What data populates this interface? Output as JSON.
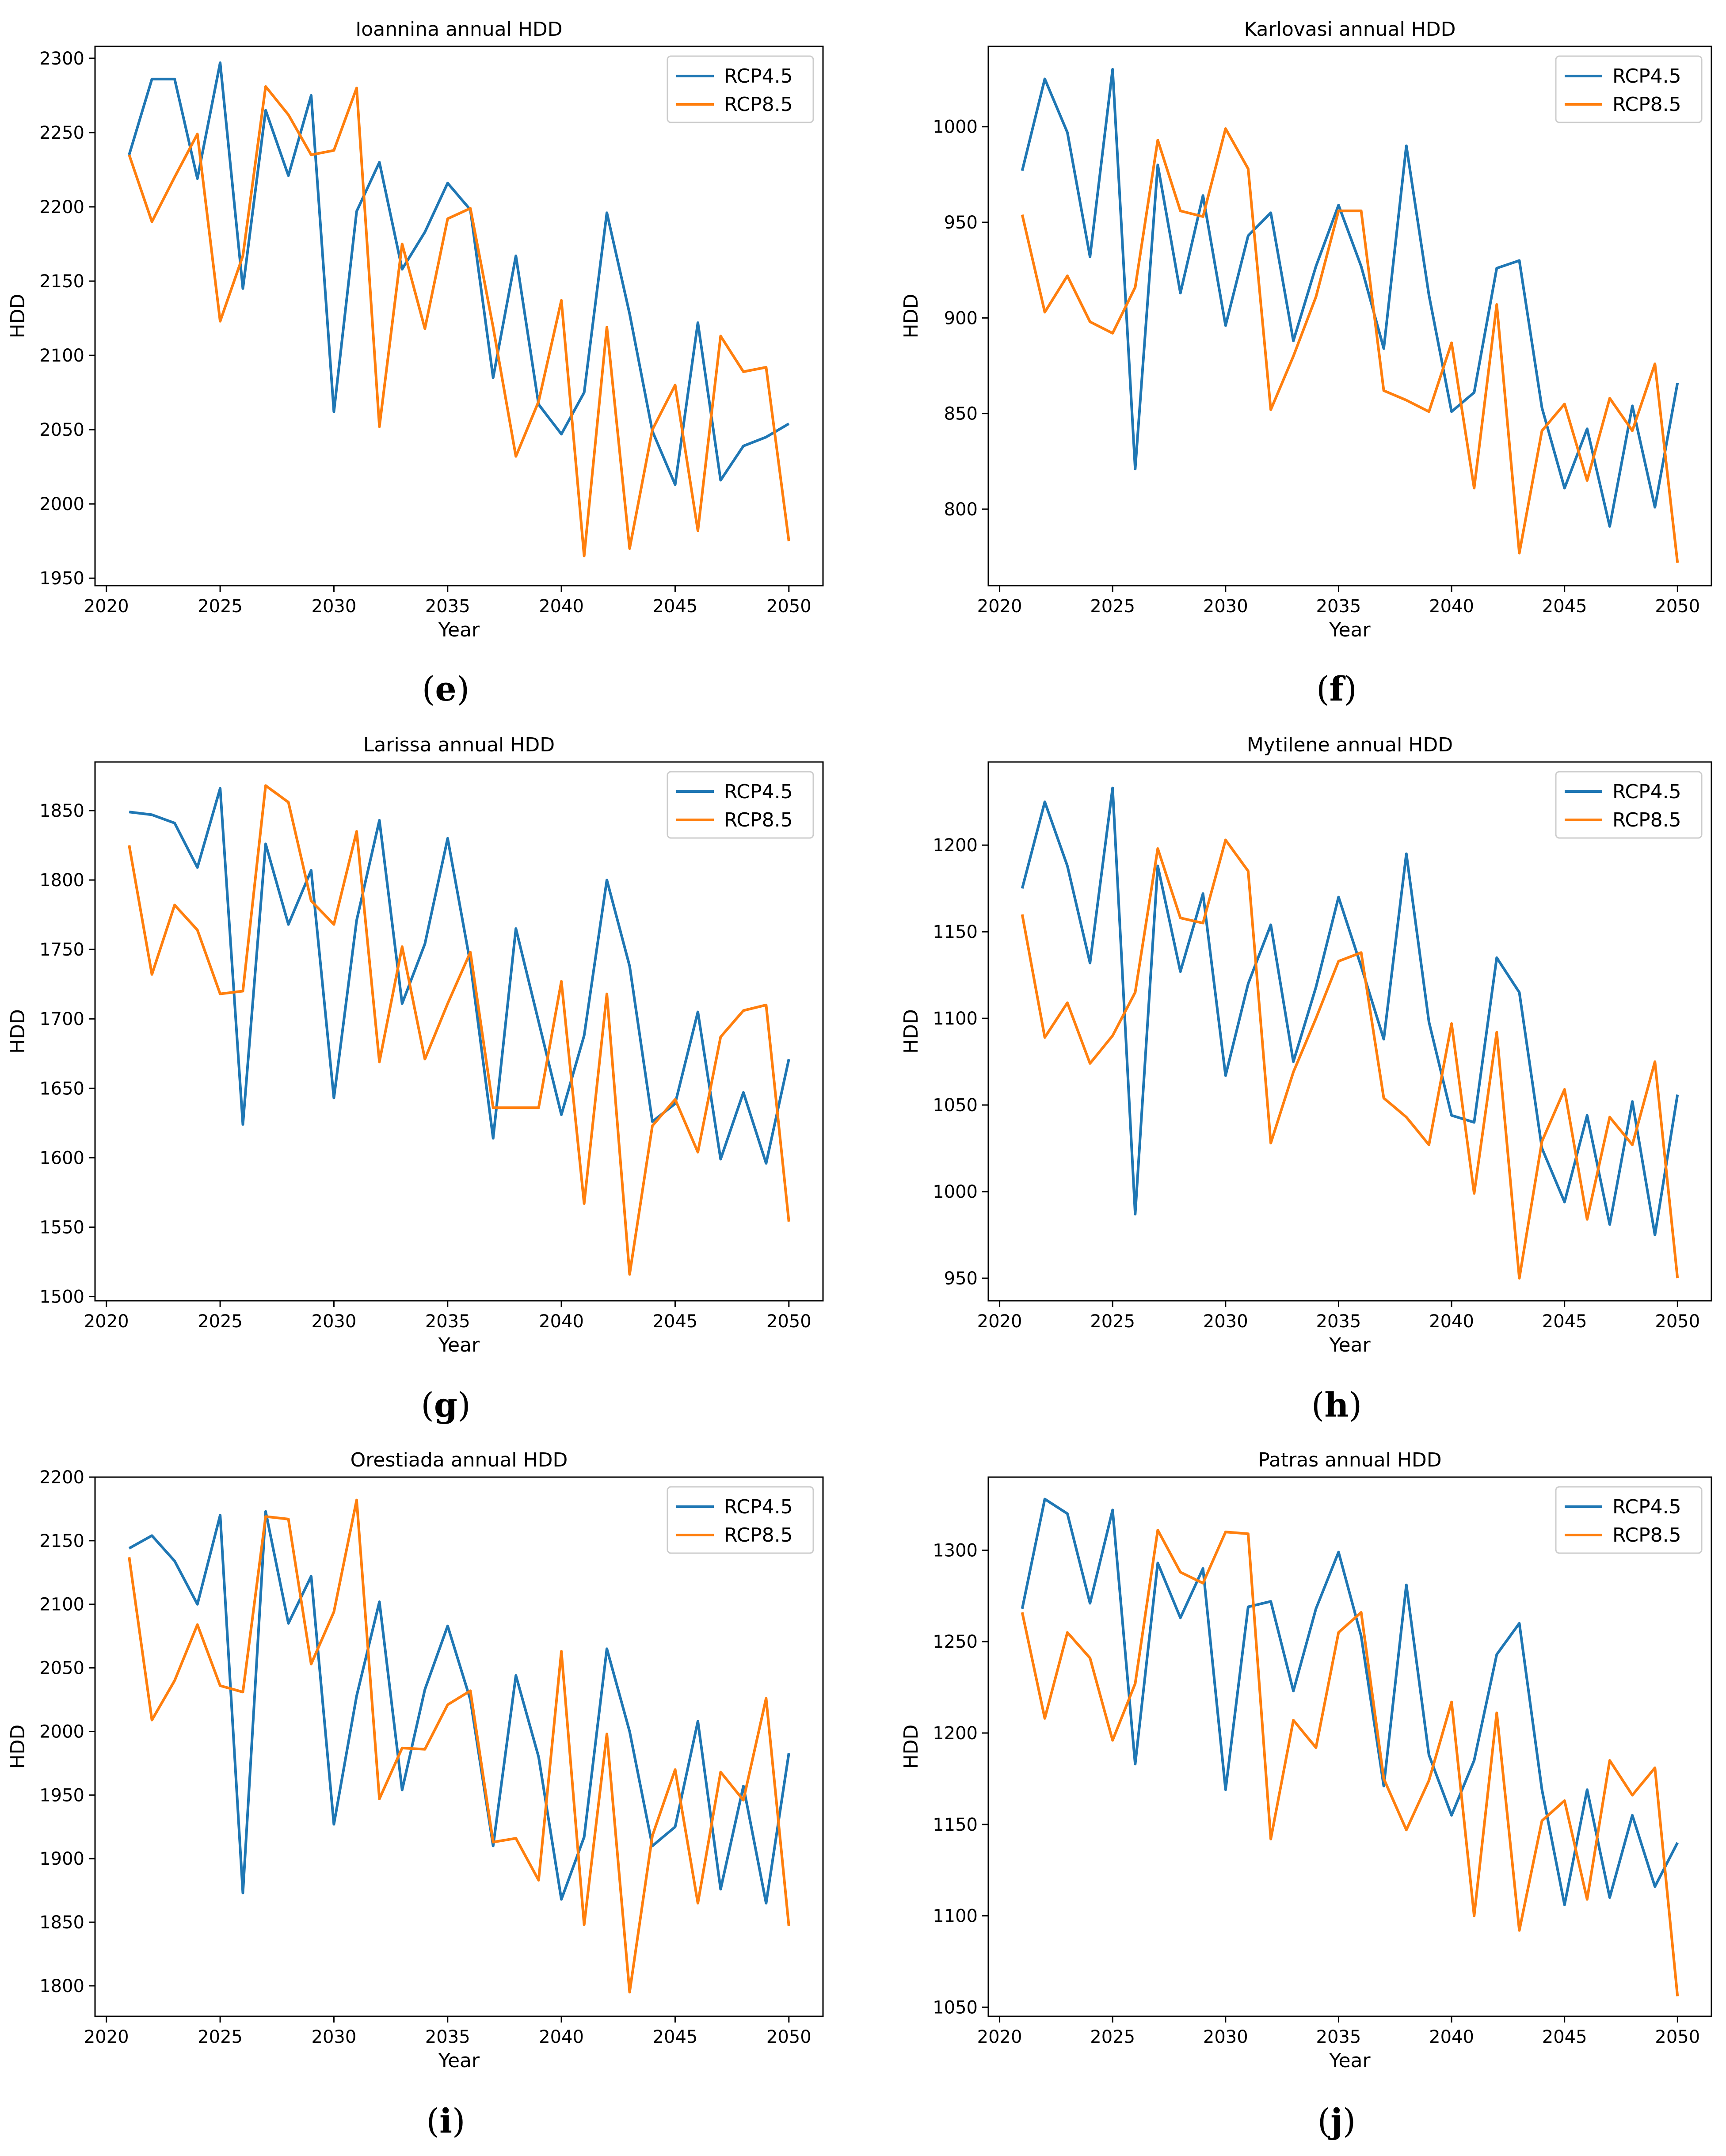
{
  "chart_data": [
    {
      "type": "line",
      "panel": "e",
      "title": "Ioannina annual HDD",
      "xlabel": "Year",
      "ylabel": "HDD",
      "xlim": [
        2019.5,
        2051.5
      ],
      "ylim": [
        1945,
        2308
      ],
      "xticks": [
        2020,
        2025,
        2030,
        2035,
        2040,
        2045,
        2050
      ],
      "yticks": [
        1950,
        2000,
        2050,
        2100,
        2150,
        2200,
        2250,
        2300
      ],
      "legend": "top-right",
      "x": [
        2021,
        2022,
        2023,
        2024,
        2025,
        2026,
        2027,
        2028,
        2029,
        2030,
        2031,
        2032,
        2033,
        2034,
        2035,
        2036,
        2037,
        2038,
        2039,
        2040,
        2041,
        2042,
        2043,
        2044,
        2045,
        2046,
        2047,
        2048,
        2049,
        2050
      ],
      "series": [
        {
          "name": "RCP4.5",
          "color": "#1f77b4",
          "values": [
            2235,
            2286,
            2286,
            2219,
            2297,
            2145,
            2265,
            2221,
            2275,
            2062,
            2197,
            2230,
            2158,
            2183,
            2216,
            2198,
            2085,
            2167,
            2067,
            2047,
            2075,
            2196,
            2128,
            2049,
            2013,
            2122,
            2016,
            2039,
            2045,
            2054
          ]
        },
        {
          "name": "RCP8.5",
          "color": "#ff7f0e",
          "values": [
            2235,
            2190,
            2220,
            2249,
            2123,
            2167,
            2281,
            2262,
            2235,
            2238,
            2280,
            2052,
            2175,
            2118,
            2192,
            2199,
            2119,
            2032,
            2069,
            2137,
            1965,
            2119,
            1970,
            2050,
            2080,
            1982,
            2113,
            2089,
            2092,
            1975
          ]
        }
      ]
    },
    {
      "type": "line",
      "panel": "f",
      "title": "Karlovasi annual HDD",
      "xlabel": "Year",
      "ylabel": "HDD",
      "xlim": [
        2019.5,
        2051.5
      ],
      "ylim": [
        760,
        1042
      ],
      "xticks": [
        2020,
        2025,
        2030,
        2035,
        2040,
        2045,
        2050
      ],
      "yticks": [
        800,
        850,
        900,
        950,
        1000
      ],
      "legend": "top-right",
      "x": [
        2021,
        2022,
        2023,
        2024,
        2025,
        2026,
        2027,
        2028,
        2029,
        2030,
        2031,
        2032,
        2033,
        2034,
        2035,
        2036,
        2037,
        2038,
        2039,
        2040,
        2041,
        2042,
        2043,
        2044,
        2045,
        2046,
        2047,
        2048,
        2049,
        2050
      ],
      "series": [
        {
          "name": "RCP4.5",
          "color": "#1f77b4",
          "values": [
            977,
            1025,
            997,
            932,
            1030,
            821,
            980,
            913,
            964,
            896,
            943,
            955,
            888,
            927,
            959,
            927,
            884,
            990,
            912,
            851,
            861,
            926,
            930,
            853,
            811,
            842,
            791,
            854,
            801,
            866
          ]
        },
        {
          "name": "RCP8.5",
          "color": "#ff7f0e",
          "values": [
            954,
            903,
            922,
            898,
            892,
            916,
            993,
            956,
            953,
            999,
            978,
            852,
            880,
            911,
            956,
            956,
            862,
            857,
            851,
            887,
            811,
            907,
            777,
            841,
            855,
            815,
            858,
            841,
            876,
            772
          ]
        }
      ]
    },
    {
      "type": "line",
      "panel": "g",
      "title": "Larissa annual HDD",
      "xlabel": "Year",
      "ylabel": "HDD",
      "xlim": [
        2019.5,
        2051.5
      ],
      "ylim": [
        1497,
        1885
      ],
      "xticks": [
        2020,
        2025,
        2030,
        2035,
        2040,
        2045,
        2050
      ],
      "yticks": [
        1500,
        1550,
        1600,
        1650,
        1700,
        1750,
        1800,
        1850
      ],
      "legend": "top-right",
      "x": [
        2021,
        2022,
        2023,
        2024,
        2025,
        2026,
        2027,
        2028,
        2029,
        2030,
        2031,
        2032,
        2033,
        2034,
        2035,
        2036,
        2037,
        2038,
        2039,
        2040,
        2041,
        2042,
        2043,
        2044,
        2045,
        2046,
        2047,
        2048,
        2049,
        2050
      ],
      "series": [
        {
          "name": "RCP4.5",
          "color": "#1f77b4",
          "values": [
            1849,
            1847,
            1841,
            1809,
            1866,
            1624,
            1826,
            1768,
            1807,
            1643,
            1771,
            1843,
            1711,
            1754,
            1830,
            1740,
            1614,
            1765,
            1698,
            1631,
            1688,
            1800,
            1738,
            1626,
            1639,
            1705,
            1599,
            1647,
            1596,
            1671
          ]
        },
        {
          "name": "RCP8.5",
          "color": "#ff7f0e",
          "values": [
            1825,
            1732,
            1782,
            1764,
            1718,
            1720,
            1868,
            1856,
            1785,
            1768,
            1835,
            1669,
            1752,
            1671,
            1711,
            1748,
            1636,
            1636,
            1636,
            1727,
            1567,
            1718,
            1516,
            1623,
            1642,
            1604,
            1687,
            1706,
            1710,
            1554
          ]
        }
      ]
    },
    {
      "type": "line",
      "panel": "h",
      "title": "Mytilene annual HDD",
      "xlabel": "Year",
      "ylabel": "HDD",
      "xlim": [
        2019.5,
        2051.5
      ],
      "ylim": [
        937,
        1248
      ],
      "xticks": [
        2020,
        2025,
        2030,
        2035,
        2040,
        2045,
        2050
      ],
      "yticks": [
        950,
        1000,
        1050,
        1100,
        1150,
        1200
      ],
      "legend": "top-right",
      "x": [
        2021,
        2022,
        2023,
        2024,
        2025,
        2026,
        2027,
        2028,
        2029,
        2030,
        2031,
        2032,
        2033,
        2034,
        2035,
        2036,
        2037,
        2038,
        2039,
        2040,
        2041,
        2042,
        2043,
        2044,
        2045,
        2046,
        2047,
        2048,
        2049,
        2050
      ],
      "series": [
        {
          "name": "RCP4.5",
          "color": "#1f77b4",
          "values": [
            1175,
            1225,
            1188,
            1132,
            1233,
            987,
            1188,
            1127,
            1172,
            1067,
            1120,
            1154,
            1075,
            1118,
            1170,
            1130,
            1088,
            1195,
            1098,
            1044,
            1040,
            1135,
            1115,
            1025,
            994,
            1044,
            981,
            1052,
            975,
            1056
          ]
        },
        {
          "name": "RCP8.5",
          "color": "#ff7f0e",
          "values": [
            1160,
            1089,
            1109,
            1074,
            1090,
            1115,
            1198,
            1158,
            1155,
            1203,
            1185,
            1028,
            1069,
            1100,
            1133,
            1138,
            1054,
            1043,
            1027,
            1097,
            999,
            1092,
            950,
            1029,
            1059,
            984,
            1043,
            1027,
            1075,
            950
          ]
        }
      ]
    },
    {
      "type": "line",
      "panel": "i",
      "title": "Orestiada annual HDD",
      "xlabel": "Year",
      "ylabel": "HDD",
      "xlim": [
        2019.5,
        2051.5
      ],
      "ylim": [
        1776,
        2200
      ],
      "xticks": [
        2020,
        2025,
        2030,
        2035,
        2040,
        2045,
        2050
      ],
      "yticks": [
        1800,
        1850,
        1900,
        1950,
        2000,
        2050,
        2100,
        2150,
        2200
      ],
      "legend": "top-right",
      "x": [
        2021,
        2022,
        2023,
        2024,
        2025,
        2026,
        2027,
        2028,
        2029,
        2030,
        2031,
        2032,
        2033,
        2034,
        2035,
        2036,
        2037,
        2038,
        2039,
        2040,
        2041,
        2042,
        2043,
        2044,
        2045,
        2046,
        2047,
        2048,
        2049,
        2050
      ],
      "series": [
        {
          "name": "RCP4.5",
          "color": "#1f77b4",
          "values": [
            2144,
            2154,
            2134,
            2100,
            2170,
            1873,
            2173,
            2085,
            2122,
            1927,
            2028,
            2102,
            1954,
            2033,
            2083,
            2025,
            1910,
            2044,
            1980,
            1868,
            1917,
            2065,
            2000,
            1910,
            1925,
            2008,
            1876,
            1957,
            1865,
            1983
          ]
        },
        {
          "name": "RCP8.5",
          "color": "#ff7f0e",
          "values": [
            2137,
            2009,
            2040,
            2084,
            2036,
            2031,
            2169,
            2167,
            2053,
            2094,
            2182,
            1947,
            1987,
            1986,
            2021,
            2032,
            1913,
            1916,
            1883,
            2063,
            1848,
            1998,
            1795,
            1918,
            1970,
            1865,
            1968,
            1946,
            2026,
            1847
          ]
        }
      ]
    },
    {
      "type": "line",
      "panel": "j",
      "title": "Patras annual HDD",
      "xlabel": "Year",
      "ylabel": "HDD",
      "xlim": [
        2019.5,
        2051.5
      ],
      "ylim": [
        1045,
        1340
      ],
      "xticks": [
        2020,
        2025,
        2030,
        2035,
        2040,
        2045,
        2050
      ],
      "yticks": [
        1050,
        1100,
        1150,
        1200,
        1250,
        1300
      ],
      "legend": "top-right",
      "x": [
        2021,
        2022,
        2023,
        2024,
        2025,
        2026,
        2027,
        2028,
        2029,
        2030,
        2031,
        2032,
        2033,
        2034,
        2035,
        2036,
        2037,
        2038,
        2039,
        2040,
        2041,
        2042,
        2043,
        2044,
        2045,
        2046,
        2047,
        2048,
        2049,
        2050
      ],
      "series": [
        {
          "name": "RCP4.5",
          "color": "#1f77b4",
          "values": [
            1268,
            1328,
            1320,
            1271,
            1322,
            1183,
            1293,
            1263,
            1290,
            1169,
            1269,
            1272,
            1223,
            1268,
            1299,
            1253,
            1171,
            1281,
            1188,
            1155,
            1185,
            1243,
            1260,
            1169,
            1106,
            1169,
            1110,
            1155,
            1116,
            1140
          ]
        },
        {
          "name": "RCP8.5",
          "color": "#ff7f0e",
          "values": [
            1266,
            1208,
            1255,
            1241,
            1196,
            1227,
            1311,
            1288,
            1282,
            1310,
            1309,
            1142,
            1207,
            1192,
            1255,
            1266,
            1175,
            1147,
            1174,
            1217,
            1100,
            1211,
            1092,
            1152,
            1163,
            1109,
            1185,
            1166,
            1181,
            1056
          ]
        }
      ]
    }
  ]
}
